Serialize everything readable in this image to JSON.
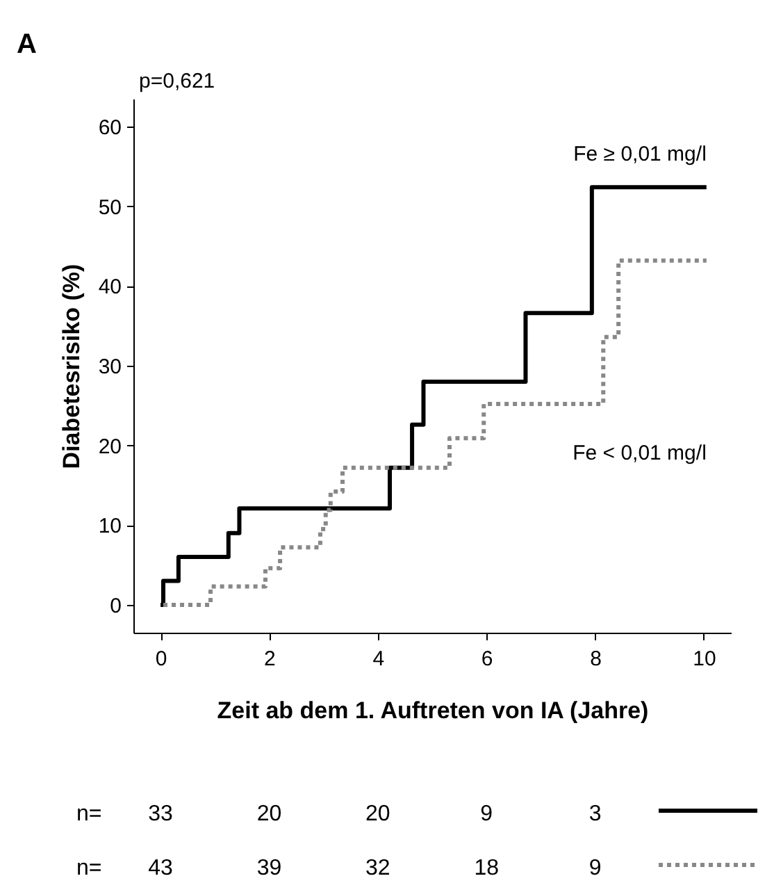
{
  "chart_data": {
    "type": "step",
    "title": "A",
    "xlabel": "Zeit ab dem 1. Auftreten von IA (Jahre)",
    "ylabel": "Diabetesrisiko (%)",
    "xlim": [
      -0.5,
      10.5
    ],
    "ylim": [
      -3.5,
      63.5
    ],
    "xticks": [
      0,
      2,
      4,
      6,
      8,
      10
    ],
    "yticks": [
      0,
      10,
      20,
      30,
      40,
      50,
      60
    ],
    "grid": false,
    "marker": "none",
    "annotations": [
      "p=0,621",
      "n= 33 20 20 9 3",
      "n= 43 39 32 18 9"
    ],
    "series": [
      {
        "name": "Fe ≥ 0,01 mg/l",
        "color": "#000000",
        "line_style": "solid",
        "x": [
          0,
          0.05,
          0.33,
          1.25,
          1.45,
          4.22,
          4.63,
          4.84,
          6.72,
          7.94,
          10.05
        ],
        "values": [
          0,
          3,
          6,
          9,
          12.1,
          17.2,
          22.6,
          28,
          36.6,
          52.4,
          52.4
        ]
      },
      {
        "name": "Fe < 0,01 mg/l",
        "color": "#888888",
        "line_style": "dotted",
        "x": [
          0.05,
          0.92,
          1.93,
          2.2,
          2.94,
          3.04,
          3.13,
          3.35,
          5.32,
          5.95,
          8.15,
          8.43,
          10.05
        ],
        "values": [
          0,
          2.3,
          4.6,
          7.2,
          9.5,
          11.9,
          14.2,
          17.2,
          20.9,
          25.2,
          33.6,
          43.2,
          43.2
        ]
      }
    ]
  }
}
